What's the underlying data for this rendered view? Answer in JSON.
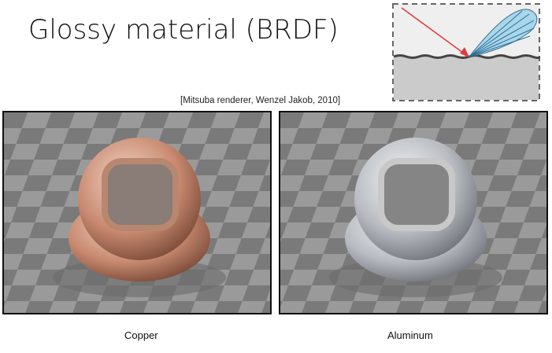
{
  "slide": {
    "title": "Glossy material (BRDF)",
    "credit": "[Mitsuba renderer, Wenzel Jakob, 2010]",
    "renders": [
      {
        "caption": "Copper",
        "tint": "#d9876a"
      },
      {
        "caption": "Aluminum",
        "tint": "#c8ccd2"
      }
    ],
    "diagram": {
      "incident_color": "#e03a3a",
      "lobe_color": "#9fd3e8"
    }
  }
}
